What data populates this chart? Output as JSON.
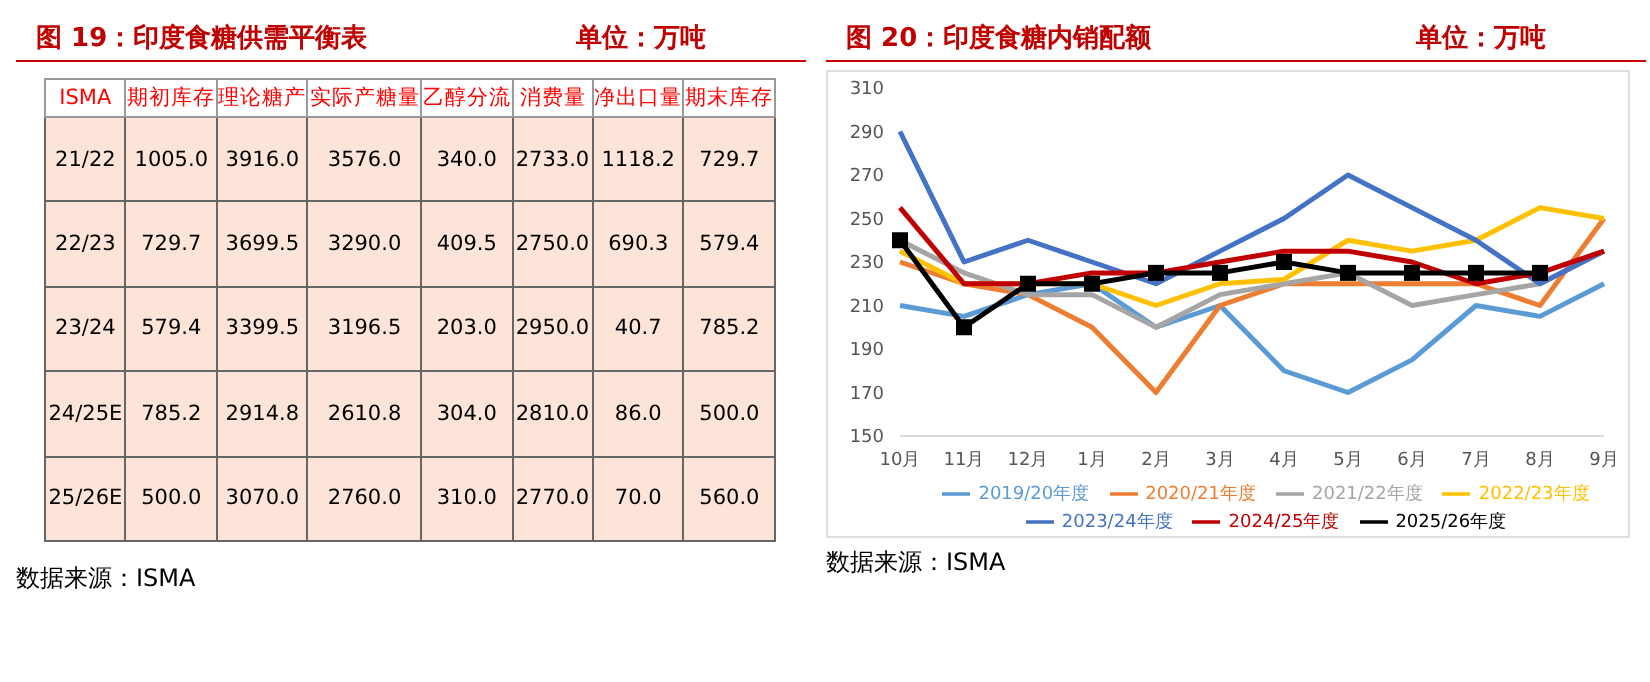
{
  "chart_data": [
    {
      "type": "other",
      "title": "图 19：印度食糖供需平衡表",
      "subtitle": "单位：万吨",
      "color": "#ff0000",
      "categories": [
        "ISMA",
        "期初库存",
        "理论糖产",
        "实际产糖量",
        "乙醇分流",
        "消费量",
        "净出口量",
        "期末库存"
      ],
      "cell_labels": [
        [
          "21/22",
          "1005.0",
          "3916.0",
          "3576.0",
          "340.0",
          "2733.0",
          "1118.2",
          "729.7"
        ],
        [
          "22/23",
          "729.7",
          "3699.5",
          "3290.0",
          "409.5",
          "2750.0",
          "690.3",
          "579.4"
        ],
        [
          "23/24",
          "579.4",
          "3399.5",
          "3196.5",
          "203.0",
          "2950.0",
          "40.7",
          "785.2"
        ],
        [
          "24/25E",
          "785.2",
          "2914.8",
          "2610.8",
          "304.0",
          "2810.0",
          "86.0",
          "500.0"
        ],
        [
          "25/26E",
          "500.0",
          "3070.0",
          "2760.0",
          "310.0",
          "2770.0",
          "70.0",
          "560.0"
        ]
      ],
      "annotations": [
        "数据来源：ISMA"
      ]
    },
    {
      "type": "line",
      "title": "图 20：印度食糖内销配额",
      "subtitle": "单位：万吨",
      "categories": [
        "10月",
        "11月",
        "12月",
        "1月",
        "2月",
        "3月",
        "4月",
        "5月",
        "6月",
        "7月",
        "8月",
        "9月"
      ],
      "ylim": [
        150,
        310
      ],
      "yticks": [
        150,
        170,
        190,
        210,
        230,
        250,
        270,
        290,
        310
      ],
      "grid": false,
      "legend": "bottom",
      "marker": "none",
      "series": [
        {
          "name": "2019/20年度",
          "color": "#5b9bd5",
          "values": [
            210,
            205,
            215,
            220,
            200,
            210,
            180,
            170,
            185,
            210,
            205,
            220
          ]
        },
        {
          "name": "2020/21年度",
          "color": "#ed7d31",
          "values": [
            230,
            220,
            215,
            200,
            170,
            210,
            220,
            220,
            220,
            220,
            210,
            250
          ]
        },
        {
          "name": "2021/22年度",
          "color": "#a5a5a5",
          "values": [
            240,
            225,
            215,
            215,
            200,
            215,
            220,
            225,
            210,
            215,
            220,
            235
          ]
        },
        {
          "name": "2022/23年度",
          "color": "#ffc000",
          "values": [
            235,
            220,
            220,
            220,
            210,
            220,
            222,
            240,
            235,
            240,
            255,
            250
          ]
        },
        {
          "name": "2023/24年度",
          "color": "#4472c4",
          "values": [
            290,
            230,
            240,
            230,
            220,
            235,
            250,
            270,
            255,
            240,
            220,
            235
          ]
        },
        {
          "name": "2024/25年度",
          "color": "#c00000",
          "values": [
            255,
            220,
            220,
            225,
            225,
            230,
            235,
            235,
            230,
            220,
            225,
            235
          ]
        },
        {
          "name": "2025/26年度",
          "color": "#000000",
          "marker": "square",
          "values": [
            240,
            200,
            220,
            220,
            225,
            225,
            230,
            225,
            225,
            225,
            225,
            null
          ]
        }
      ],
      "annotations": [
        "数据来源：ISMA"
      ]
    }
  ]
}
